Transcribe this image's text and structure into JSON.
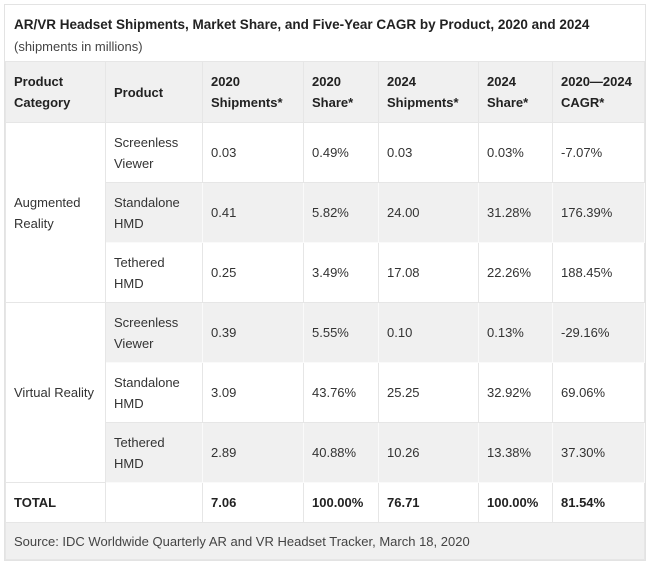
{
  "title": "AR/VR Headset Shipments, Market Share, and Five-Year CAGR by Product, 2020 and 2024",
  "subtitle": "(shipments in millions)",
  "headers": [
    "Product Category",
    "Product",
    "2020 Shipments*",
    "2020 Share*",
    "2024 Shipments*",
    "2024 Share*",
    "2020—2024 CAGR*"
  ],
  "groups": [
    {
      "category": "Augmented Reality",
      "rows": [
        [
          "Screenless Viewer",
          "0.03",
          "0.49%",
          "0.03",
          "0.03%",
          "-7.07%"
        ],
        [
          "Standalone HMD",
          "0.41",
          "5.82%",
          "24.00",
          "31.28%",
          "176.39%"
        ],
        [
          "Tethered HMD",
          "0.25",
          "3.49%",
          "17.08",
          "22.26%",
          "188.45%"
        ]
      ]
    },
    {
      "category": "Virtual Reality",
      "rows": [
        [
          "Screenless Viewer",
          "0.39",
          "5.55%",
          "0.10",
          "0.13%",
          "-29.16%"
        ],
        [
          "Standalone HMD",
          "3.09",
          "43.76%",
          "25.25",
          "32.92%",
          "69.06%"
        ],
        [
          "Tethered HMD",
          "2.89",
          "40.88%",
          "10.26",
          "13.38%",
          "37.30%"
        ]
      ]
    }
  ],
  "total": [
    "TOTAL",
    "",
    "7.06",
    "100.00%",
    "76.71",
    "100.00%",
    "81.54%"
  ],
  "source": "Source: IDC Worldwide Quarterly AR and VR Headset Tracker, March 18, 2020"
}
